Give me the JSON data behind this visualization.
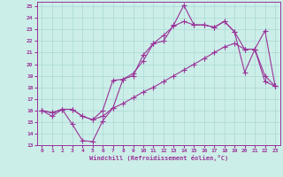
{
  "xlabel": "Windchill (Refroidissement éolien,°C)",
  "bg_color": "#cceee8",
  "grid_color": "#aad8d4",
  "line_color": "#993399",
  "xlim": [
    -0.5,
    23.5
  ],
  "ylim": [
    13,
    25.4
  ],
  "xticks": [
    0,
    1,
    2,
    3,
    4,
    5,
    6,
    7,
    8,
    9,
    10,
    11,
    12,
    13,
    14,
    15,
    16,
    17,
    18,
    19,
    20,
    21,
    22,
    23
  ],
  "yticks": [
    13,
    14,
    15,
    16,
    17,
    18,
    19,
    20,
    21,
    22,
    23,
    24,
    25
  ],
  "line1_x": [
    0,
    1,
    2,
    3,
    4,
    5,
    6,
    7,
    8,
    9,
    10,
    11,
    12,
    13,
    14,
    15,
    16,
    17,
    18,
    19,
    20,
    21,
    22,
    23
  ],
  "line1_y": [
    16.0,
    15.5,
    16.1,
    14.8,
    13.4,
    13.3,
    15.1,
    16.2,
    18.7,
    19.0,
    20.8,
    21.8,
    22.0,
    23.4,
    25.1,
    23.4,
    23.4,
    23.2,
    23.7,
    22.8,
    19.3,
    21.3,
    19.0,
    18.1
  ],
  "line2_x": [
    0,
    1,
    2,
    3,
    4,
    5,
    6,
    7,
    8,
    9,
    10,
    11,
    12,
    13,
    14,
    15,
    16,
    17,
    18,
    19,
    20,
    21,
    22,
    23
  ],
  "line2_y": [
    16.0,
    15.8,
    16.1,
    16.1,
    15.5,
    15.2,
    16.0,
    18.6,
    18.7,
    19.2,
    20.3,
    21.8,
    22.5,
    23.3,
    23.7,
    23.4,
    23.4,
    23.2,
    23.7,
    22.8,
    21.3,
    21.3,
    22.9,
    18.1
  ],
  "line3_x": [
    0,
    1,
    2,
    3,
    4,
    5,
    6,
    7,
    8,
    9,
    10,
    11,
    12,
    13,
    14,
    15,
    16,
    17,
    18,
    19,
    20,
    21,
    22,
    23
  ],
  "line3_y": [
    16.0,
    15.8,
    16.1,
    16.1,
    15.5,
    15.2,
    15.5,
    16.2,
    16.6,
    17.1,
    17.6,
    18.0,
    18.5,
    19.0,
    19.5,
    20.0,
    20.5,
    21.0,
    21.5,
    21.8,
    21.3,
    21.3,
    18.5,
    18.1
  ]
}
